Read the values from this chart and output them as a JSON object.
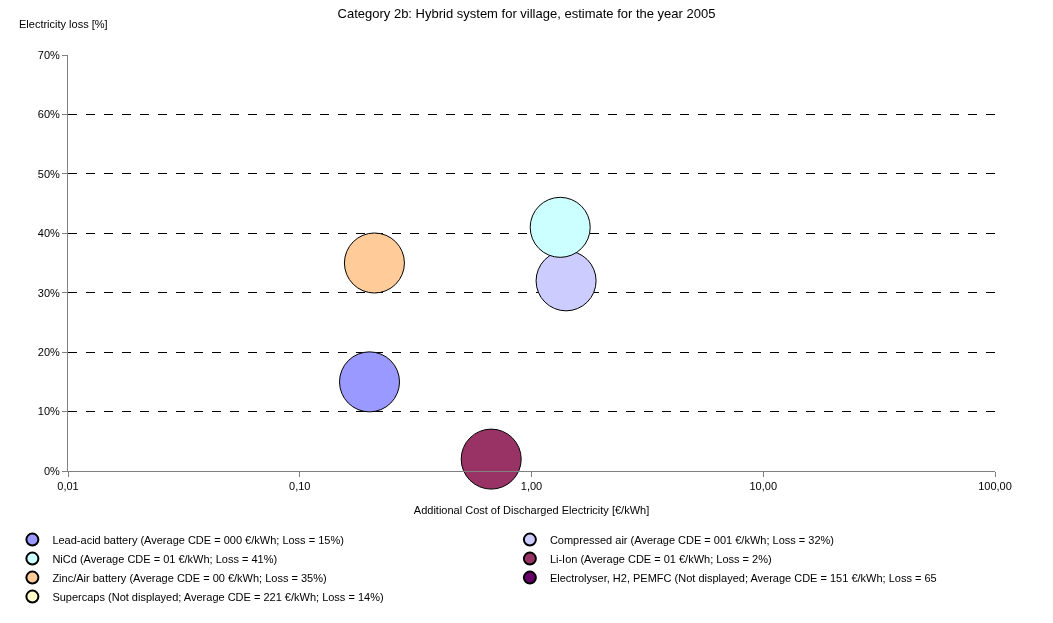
{
  "chart_data": {
    "type": "bubble",
    "title": "Category 2b: Hybrid system for village, estimate for the year 2005",
    "xlabel": "Additional Cost of Discharged Electricity [€/kWh]",
    "ylabel": "Electricity loss [%]",
    "series": [
      {
        "name": "Lead-acid battery (Average CDE = 000 €/kWh; Loss = 15%)",
        "color": "#9999ff",
        "x": [
          0.2
        ],
        "values": [
          15
        ],
        "sizes": [
          1
        ]
      },
      {
        "name": "Compressed air (Average CDE = 001 €/kWh; Loss = 32%)",
        "color": "#ccccff",
        "x": [
          1.41
        ],
        "values": [
          32
        ],
        "sizes": [
          1
        ]
      },
      {
        "name": "NiCd (Average CDE = 01 €/kWh; Loss = 41%)",
        "color": "#ccffff",
        "x": [
          1.33
        ],
        "values": [
          41
        ],
        "sizes": [
          1
        ]
      },
      {
        "name": "Li-Ion (Average CDE = 01 €/kWh; Loss = 2%)",
        "color": "#993366",
        "x": [
          0.67
        ],
        "values": [
          2
        ],
        "sizes": [
          1
        ]
      },
      {
        "name": "Zinc/Air battery (Average CDE = 00 €/kWh; Loss = 35%)",
        "color": "#ffcc99",
        "x": [
          0.21
        ],
        "values": [
          35
        ],
        "sizes": [
          1
        ]
      },
      {
        "name": "Electrolyser, H2, PEMFC (Not displayed; Average CDE = 151 €/kWh; Loss = 65",
        "color": "#660066",
        "x": [
          null
        ],
        "values": [
          null
        ],
        "sizes": [
          null
        ]
      },
      {
        "name": "Supercaps (Not displayed; Average CDE = 221 €/kWh; Loss = 14%)",
        "color": "#ffffcc",
        "x": [
          null
        ],
        "values": [
          null
        ],
        "sizes": [
          null
        ]
      }
    ],
    "log": "x",
    "xlim": [
      0.01,
      100
    ],
    "xticks": [
      {
        "value": 0.01,
        "label": "0,01"
      },
      {
        "value": 0.1,
        "label": "0,10"
      },
      {
        "value": 1,
        "label": "1,00"
      },
      {
        "value": 10,
        "label": "10,00"
      },
      {
        "value": 100,
        "label": "100,00"
      }
    ],
    "ylim": [
      0,
      70
    ],
    "yticks": [
      {
        "value": 0,
        "label": "0%"
      },
      {
        "value": 10,
        "label": "10%"
      },
      {
        "value": 20,
        "label": "20%"
      },
      {
        "value": 30,
        "label": "30%"
      },
      {
        "value": 40,
        "label": "40%"
      },
      {
        "value": 50,
        "label": "50%"
      },
      {
        "value": 60,
        "label": "60%"
      },
      {
        "value": 70,
        "label": "70%"
      }
    ],
    "grid": "y",
    "legend": "bottom"
  }
}
